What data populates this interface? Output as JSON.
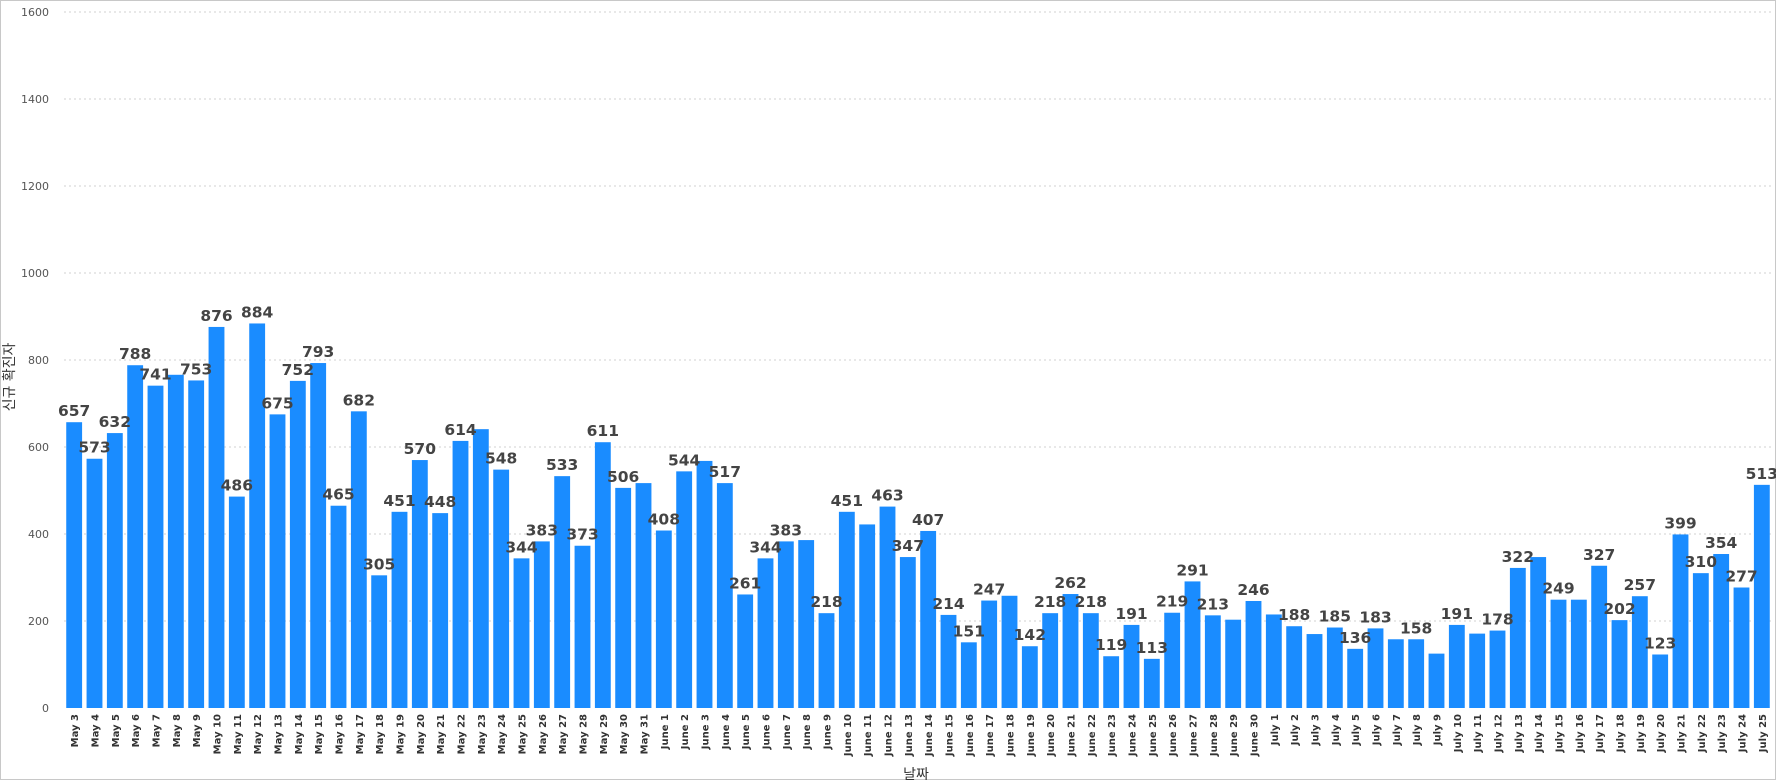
{
  "chart_data": {
    "type": "bar",
    "xlabel": "날짜",
    "ylabel": "신규 확진자",
    "ylim": [
      0,
      1600
    ],
    "yticks": [
      0,
      200,
      400,
      600,
      800,
      1000,
      1200,
      1400,
      1600
    ],
    "grid": true,
    "bar_color": "#1a8cff",
    "categories": [
      "May 3",
      "May 4",
      "May 5",
      "May 6",
      "May 7",
      "May 8",
      "May 9",
      "May 10",
      "May 11",
      "May 12",
      "May 13",
      "May 14",
      "May 15",
      "May 16",
      "May 17",
      "May 18",
      "May 19",
      "May 20",
      "May 21",
      "May 22",
      "May 23",
      "May 24",
      "May 25",
      "May 26",
      "May 27",
      "May 28",
      "May 29",
      "May 30",
      "May 31",
      "June 1",
      "June 2",
      "June 3",
      "June 4",
      "June 5",
      "June 6",
      "June 7",
      "June 8",
      "June 9",
      "June 10",
      "June 11",
      "June 12",
      "June 13",
      "June 14",
      "June 15",
      "June 16",
      "June 17",
      "June 18",
      "June 19",
      "June 20",
      "June 21",
      "June 22",
      "June 23",
      "June 24",
      "June 25",
      "June 26",
      "June 27",
      "June 28",
      "June 29",
      "June 30",
      "July 1",
      "July 2",
      "July 3",
      "July 4",
      "July 5",
      "July 6",
      "July 7",
      "July 8",
      "July 9",
      "July 10",
      "July 11",
      "July 12",
      "July 13",
      "July 14",
      "July 15",
      "July 16",
      "July 17",
      "July 18",
      "July 19",
      "July 20",
      "July 21",
      "July 22",
      "July 23",
      "July 24",
      "July 25"
    ],
    "values": [
      657,
      573,
      632,
      788,
      741,
      766,
      753,
      876,
      486,
      884,
      675,
      752,
      793,
      465,
      682,
      305,
      451,
      570,
      448,
      614,
      641,
      548,
      344,
      383,
      533,
      373,
      611,
      506,
      517,
      408,
      544,
      568,
      517,
      261,
      344,
      383,
      386,
      218,
      451,
      422,
      463,
      347,
      407,
      214,
      151,
      247,
      258,
      142,
      218,
      262,
      218,
      119,
      191,
      113,
      219,
      291,
      213,
      203,
      246,
      215,
      188,
      170,
      185,
      136,
      183,
      158,
      158,
      125,
      191,
      171,
      178,
      322,
      347,
      249,
      249,
      327,
      202,
      257,
      123,
      399,
      310,
      354,
      277,
      513
    ],
    "labels": [
      "657",
      "573",
      "632",
      "788",
      "741",
      "",
      "753",
      "876",
      "486",
      "884",
      "675",
      "752",
      "793",
      "465",
      "682",
      "305",
      "451",
      "570",
      "448",
      "614",
      "",
      "548",
      "344",
      "383",
      "533",
      "373",
      "611",
      "506",
      "",
      "408",
      "544",
      "",
      "517",
      "261",
      "344",
      "383",
      "",
      "218",
      "451",
      "",
      "463",
      "347",
      "407",
      "214",
      "151",
      "247",
      "",
      "142",
      "218",
      "262",
      "218",
      "119",
      "191",
      "113",
      "219",
      "291",
      "213",
      "",
      "246",
      "",
      "188",
      "",
      "185",
      "136",
      "183",
      "",
      "158",
      "",
      "191",
      "",
      "178",
      "322",
      "",
      "249",
      "",
      "327",
      "202",
      "257",
      "123",
      "399",
      "310",
      "354",
      "277",
      "513"
    ]
  }
}
